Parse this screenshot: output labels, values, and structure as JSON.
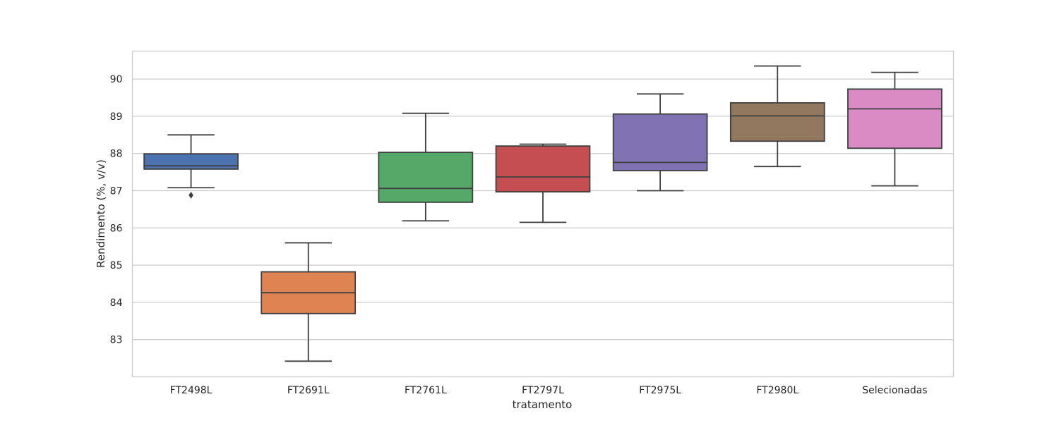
{
  "chart_data": {
    "type": "box",
    "title": "",
    "xlabel": "tratamento",
    "ylabel": "Rendimento (%, v/v)",
    "ylim": [
      82.0,
      90.75
    ],
    "yticks": [
      83,
      84,
      85,
      86,
      87,
      88,
      89,
      90
    ],
    "grid": true,
    "categories": [
      "FT2498L",
      "FT2691L",
      "FT2761L",
      "FT2797L",
      "FT2975L",
      "FT2980L",
      "Selecionadas"
    ],
    "colors": [
      "#4c72b0",
      "#dd8452",
      "#55a868",
      "#c44e52",
      "#8172b3",
      "#937860",
      "#da8bc3"
    ],
    "boxes": [
      {
        "category": "FT2498L",
        "whisker_low": 87.08,
        "q1": 87.58,
        "median": 87.67,
        "q3": 87.99,
        "whisker_high": 88.5,
        "outliers": [
          86.88
        ]
      },
      {
        "category": "FT2691L",
        "whisker_low": 82.42,
        "q1": 83.7,
        "median": 84.26,
        "q3": 84.82,
        "whisker_high": 85.6,
        "outliers": []
      },
      {
        "category": "FT2761L",
        "whisker_low": 86.19,
        "q1": 86.69,
        "median": 87.06,
        "q3": 88.03,
        "whisker_high": 89.08,
        "outliers": []
      },
      {
        "category": "FT2797L",
        "whisker_low": 86.15,
        "q1": 86.97,
        "median": 87.37,
        "q3": 88.2,
        "whisker_high": 88.25,
        "outliers": []
      },
      {
        "category": "FT2975L",
        "whisker_low": 87.0,
        "q1": 87.54,
        "median": 87.76,
        "q3": 89.06,
        "whisker_high": 89.6,
        "outliers": []
      },
      {
        "category": "FT2980L",
        "whisker_low": 87.65,
        "q1": 88.33,
        "median": 89.01,
        "q3": 89.36,
        "whisker_high": 90.35,
        "outliers": []
      },
      {
        "category": "Selecionadas",
        "whisker_low": 87.13,
        "q1": 88.14,
        "median": 89.2,
        "q3": 89.73,
        "whisker_high": 90.18,
        "outliers": []
      }
    ]
  }
}
